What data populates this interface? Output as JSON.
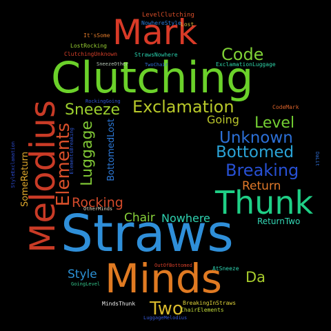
{
  "word_cloud": {
    "background_color": "#000000",
    "words": [
      {
        "id": "straws",
        "text": "Straws",
        "color": "#2f8fd9",
        "orientation": "horizontal"
      },
      {
        "id": "clutching",
        "text": "Clutching",
        "color": "#6bd12a",
        "orientation": "horizontal"
      },
      {
        "id": "minds",
        "text": "Minds",
        "color": "#e07a22",
        "orientation": "horizontal"
      },
      {
        "id": "mark",
        "text": "Mark",
        "color": "#d93a27",
        "orientation": "horizontal"
      },
      {
        "id": "thunk",
        "text": "Thunk",
        "color": "#1fcf86",
        "orientation": "horizontal"
      },
      {
        "id": "melodius",
        "text": "Melodius",
        "color": "#c93b26",
        "orientation": "vertical-up"
      },
      {
        "id": "exclamation",
        "text": "Exclamation",
        "color": "#b8c82a",
        "orientation": "horizontal"
      },
      {
        "id": "sneeze",
        "text": "Sneeze",
        "color": "#9ccf2e",
        "orientation": "horizontal"
      },
      {
        "id": "code",
        "text": "Code",
        "color": "#7fd136",
        "orientation": "horizontal"
      },
      {
        "id": "unknown",
        "text": "Unknown",
        "color": "#2c6fd6",
        "orientation": "horizontal"
      },
      {
        "id": "bottomed",
        "text": "Bottomed",
        "color": "#2aa3d6",
        "orientation": "horizontal"
      },
      {
        "id": "breaking",
        "text": "Breaking",
        "color": "#2750d4",
        "orientation": "horizontal"
      },
      {
        "id": "level",
        "text": "Level",
        "color": "#74cf33",
        "orientation": "horizontal"
      },
      {
        "id": "elements",
        "text": "Elements",
        "color": "#d84f2a",
        "orientation": "vertical-up"
      },
      {
        "id": "luggage",
        "text": "Luggage",
        "color": "#7fc635",
        "orientation": "vertical-up"
      },
      {
        "id": "two",
        "text": "Two",
        "color": "#d9b92c",
        "orientation": "horizontal"
      },
      {
        "id": "rocking",
        "text": "Rocking",
        "color": "#d34a2a",
        "orientation": "horizontal"
      },
      {
        "id": "return",
        "text": "Return",
        "color": "#e0792a",
        "orientation": "horizontal"
      },
      {
        "id": "going",
        "text": "Going",
        "color": "#b9c52b",
        "orientation": "horizontal"
      },
      {
        "id": "chair",
        "text": "Chair",
        "color": "#88d23a",
        "orientation": "horizontal"
      },
      {
        "id": "nowhere",
        "text": "Nowhere",
        "color": "#2fd3b1",
        "orientation": "horizontal"
      },
      {
        "id": "style",
        "text": "Style",
        "color": "#2d92d6",
        "orientation": "horizontal"
      },
      {
        "id": "da",
        "text": "Da",
        "color": "#a8cc2c",
        "orientation": "horizontal"
      },
      {
        "id": "bottomedlost",
        "text": "BottomedLost",
        "color": "#2c78d6",
        "orientation": "vertical-up"
      },
      {
        "id": "somereturn",
        "text": "SomeReturn",
        "color": "#e0a92c",
        "orientation": "vertical-up"
      },
      {
        "id": "returntwo",
        "text": "ReturnTwo",
        "color": "#33d8b5",
        "orientation": "horizontal"
      },
      {
        "id": "levelclutching",
        "text": "LevelClutching",
        "color": "#d94f2a",
        "orientation": "horizontal"
      },
      {
        "id": "nowherestyle",
        "text": "NowhereStyle",
        "color": "#2e7bd6",
        "orientation": "horizontal"
      },
      {
        "id": "lost",
        "text": "Lost",
        "color": "#d9b73a",
        "orientation": "horizontal"
      },
      {
        "id": "itssome",
        "text": "It'sSome",
        "color": "#e07a2a",
        "orientation": "horizontal"
      },
      {
        "id": "lostrocking",
        "text": "LostRocking",
        "color": "#9ad133",
        "orientation": "horizontal"
      },
      {
        "id": "clutchingunknown",
        "text": "ClutchingUnknown",
        "color": "#d8402a",
        "orientation": "horizontal"
      },
      {
        "id": "strawsnowhere",
        "text": "StrawsNowhere",
        "color": "#2ad3b0",
        "orientation": "horizontal"
      },
      {
        "id": "sneezeother",
        "text": "SneezeOther",
        "color": "#b8c8b8",
        "orientation": "horizontal"
      },
      {
        "id": "twochair",
        "text": "TwoChair",
        "color": "#2f6fd6",
        "orientation": "horizontal"
      },
      {
        "id": "exclamationluggage",
        "text": "ExclamationLuggage",
        "color": "#2fd3a8",
        "orientation": "horizontal"
      },
      {
        "id": "codemark",
        "text": "CodeMark",
        "color": "#d9622a",
        "orientation": "horizontal"
      },
      {
        "id": "rockinggoing",
        "text": "RockingGoing",
        "color": "#2f56d6",
        "orientation": "horizontal"
      },
      {
        "id": "elementsbreaking",
        "text": "ElementsBreaking",
        "color": "#2e56d2",
        "orientation": "vertical-up"
      },
      {
        "id": "styleexclamation",
        "text": "StyleExclamation",
        "color": "#2b49c9",
        "orientation": "vertical-up"
      },
      {
        "id": "dalit",
        "text": "DaLit",
        "color": "#2f6fd6",
        "orientation": "vertical-down"
      },
      {
        "id": "otherminds",
        "text": "OtherMinds",
        "color": "#e0d7c0",
        "orientation": "horizontal"
      },
      {
        "id": "outofbottomed",
        "text": "OutOfBottomed",
        "color": "#d8402a",
        "orientation": "horizontal"
      },
      {
        "id": "atsneeze",
        "text": "AtSneeze",
        "color": "#2fd3b1",
        "orientation": "horizontal"
      },
      {
        "id": "goinglevel",
        "text": "GoingLevel",
        "color": "#33c38a",
        "orientation": "horizontal"
      },
      {
        "id": "mindsthunk",
        "text": "MindsThunk",
        "color": "#f0f0f0",
        "orientation": "horizontal"
      },
      {
        "id": "breakinginstraws",
        "text": "BreakingInStraws",
        "color": "#e0d43a",
        "orientation": "horizontal"
      },
      {
        "id": "chairelements",
        "text": "ChairElements",
        "color": "#c5dd3a",
        "orientation": "horizontal"
      },
      {
        "id": "luggagemelodius",
        "text": "LuggageMelodius",
        "color": "#3659d8",
        "orientation": "horizontal"
      }
    ]
  }
}
